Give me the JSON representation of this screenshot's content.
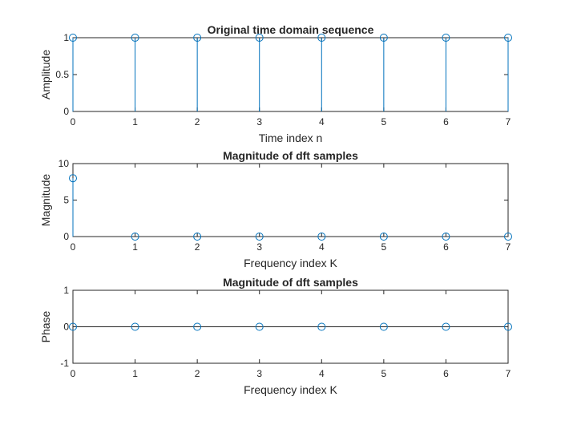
{
  "colors": {
    "stem": "#0072bd",
    "axes": "#262626",
    "background": "#ffffff"
  },
  "chart_data": [
    {
      "type": "stem",
      "title": "Original time domain sequence",
      "xlabel": "Time index n",
      "ylabel": "Amplitude",
      "x": [
        0,
        1,
        2,
        3,
        4,
        5,
        6,
        7
      ],
      "y": [
        1,
        1,
        1,
        1,
        1,
        1,
        1,
        1
      ],
      "xlim": [
        0,
        7
      ],
      "ylim": [
        0,
        1
      ],
      "xticks": [
        "0",
        "1",
        "2",
        "3",
        "4",
        "5",
        "6",
        "7"
      ],
      "yticks": [
        {
          "value": 0,
          "label": "0"
        },
        {
          "value": 0.5,
          "label": "0.5"
        },
        {
          "value": 1,
          "label": "1"
        }
      ],
      "grid": false,
      "legend": "none"
    },
    {
      "type": "stem",
      "title": "Magnitude of dft samples",
      "xlabel": "Frequency index K",
      "ylabel": "Magnitude",
      "x": [
        0,
        1,
        2,
        3,
        4,
        5,
        6,
        7
      ],
      "y": [
        8,
        0,
        0,
        0,
        0,
        0,
        0,
        0
      ],
      "xlim": [
        0,
        7
      ],
      "ylim": [
        0,
        10
      ],
      "xticks": [
        "0",
        "1",
        "2",
        "3",
        "4",
        "5",
        "6",
        "7"
      ],
      "yticks": [
        {
          "value": 0,
          "label": "0"
        },
        {
          "value": 5,
          "label": "5"
        },
        {
          "value": 10,
          "label": "10"
        }
      ],
      "grid": false,
      "legend": "none"
    },
    {
      "type": "stem",
      "title": "Magnitude of dft samples",
      "xlabel": "Frequency index K",
      "ylabel": "Phase",
      "x": [
        0,
        1,
        2,
        3,
        4,
        5,
        6,
        7
      ],
      "y": [
        0,
        0,
        0,
        0,
        0,
        0,
        0,
        0
      ],
      "xlim": [
        0,
        7
      ],
      "ylim": [
        -1,
        1
      ],
      "xticks": [
        "0",
        "1",
        "2",
        "3",
        "4",
        "5",
        "6",
        "7"
      ],
      "yticks": [
        {
          "value": -1,
          "label": "-1"
        },
        {
          "value": 0,
          "label": "0"
        },
        {
          "value": 1,
          "label": "1"
        }
      ],
      "grid": false,
      "legend": "none"
    }
  ]
}
